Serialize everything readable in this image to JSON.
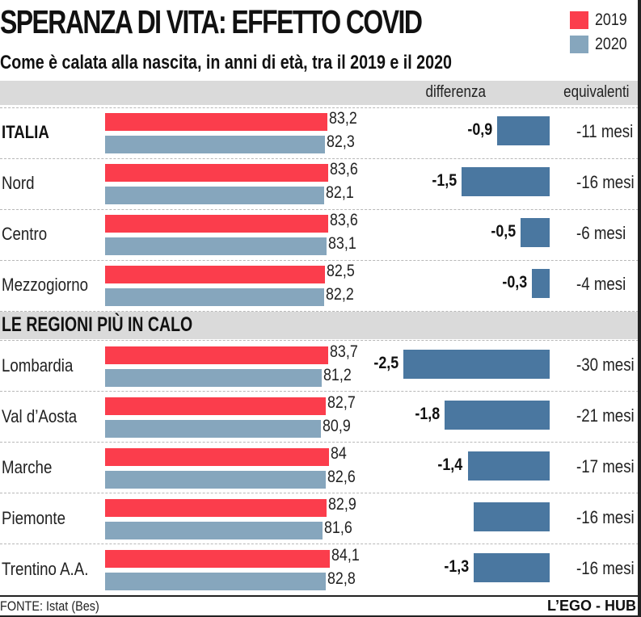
{
  "title": "SPERANZA DI VITA: EFFETTO COVID",
  "subtitle": "Come è calata alla nascita, in anni di età, tra il 2019 e il 2020",
  "legend": [
    {
      "label": "2019",
      "color": "#fb3d4c"
    },
    {
      "label": "2020",
      "color": "#86a6bd"
    }
  ],
  "columns": {
    "difference": "differenza",
    "equivalent": "equivalenti"
  },
  "section_title": "LE REGIONI PIÙ IN CALO",
  "footer": {
    "source": "FONTE: Istat (Bes)",
    "brand": "L’EGO - HUB"
  },
  "colors": {
    "y2019": "#fb3d4c",
    "y2020": "#86a6bd",
    "difference": "#4a77a0"
  },
  "chart_data": {
    "type": "bar",
    "title": "SPERANZA DI VITA: EFFETTO COVID",
    "subtitle": "Come è calata alla nascita, in anni di età, tra il 2019 e il 2020",
    "xlabel": "",
    "ylabel": "",
    "legend_position": "top-right",
    "series": [
      {
        "name": "2019",
        "values": [
          83.2,
          83.6,
          83.6,
          82.5,
          83.7,
          82.7,
          84,
          82.9,
          84.1
        ]
      },
      {
        "name": "2020",
        "values": [
          82.3,
          82.1,
          83.1,
          82.2,
          81.2,
          80.9,
          82.6,
          81.6,
          82.8
        ]
      },
      {
        "name": "differenza",
        "values": [
          -0.9,
          -1.5,
          -0.5,
          -0.3,
          -2.5,
          -1.8,
          -1.4,
          -1.3,
          -1.3
        ]
      }
    ],
    "categories": [
      "ITALIA",
      "Nord",
      "Centro",
      "Mezzogiorno",
      "Lombardia",
      "Val d’Aosta",
      "Marche",
      "Piemonte",
      "Trentino A.A."
    ],
    "rows": [
      {
        "name": "ITALIA",
        "bold": true,
        "v2019": 83.2,
        "v2020": 82.3,
        "l2019": "83,2",
        "l2020": "82,3",
        "diff": -0.9,
        "diff_label": "-0,9",
        "equiv": "-11 mesi"
      },
      {
        "name": "Nord",
        "bold": false,
        "v2019": 83.6,
        "v2020": 82.1,
        "l2019": "83,6",
        "l2020": "82,1",
        "diff": -1.5,
        "diff_label": "-1,5",
        "equiv": "-16 mesi"
      },
      {
        "name": "Centro",
        "bold": false,
        "v2019": 83.6,
        "v2020": 83.1,
        "l2019": "83,6",
        "l2020": "83,1",
        "diff": -0.5,
        "diff_label": "-0,5",
        "equiv": "-6 mesi"
      },
      {
        "name": "Mezzogiorno",
        "bold": false,
        "v2019": 82.5,
        "v2020": 82.2,
        "l2019": "82,5",
        "l2020": "82,2",
        "diff": -0.3,
        "diff_label": "-0,3",
        "equiv": "-4 mesi"
      },
      {
        "name": "Lombardia",
        "bold": false,
        "v2019": 83.7,
        "v2020": 81.2,
        "l2019": "83,7",
        "l2020": "81,2",
        "diff": -2.5,
        "diff_label": "-2,5",
        "equiv": "-30 mesi"
      },
      {
        "name": "Val d’Aosta",
        "bold": false,
        "v2019": 82.7,
        "v2020": 80.9,
        "l2019": "82,7",
        "l2020": "80,9",
        "diff": -1.8,
        "diff_label": "-1,8",
        "equiv": "-21 mesi"
      },
      {
        "name": "Marche",
        "bold": false,
        "v2019": 84,
        "v2020": 82.6,
        "l2019": "84",
        "l2020": "82,6",
        "diff": -1.4,
        "diff_label": "-1,4",
        "equiv": "-17 mesi"
      },
      {
        "name": "Piemonte",
        "bold": false,
        "v2019": 82.9,
        "v2020": 81.6,
        "l2019": "82,9",
        "l2020": "81,6",
        "diff": -1.3,
        "diff_label": "",
        "equiv": "-16 mesi"
      },
      {
        "name": "Trentino A.A.",
        "bold": false,
        "v2019": 84.1,
        "v2020": 82.8,
        "l2019": "84,1",
        "l2020": "82,8",
        "diff": -1.3,
        "diff_label": "-1,3",
        "equiv": "-16 mesi"
      }
    ]
  }
}
